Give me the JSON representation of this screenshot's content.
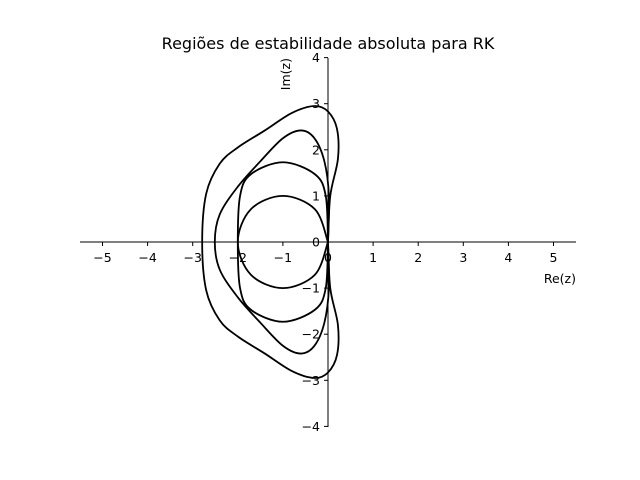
{
  "chart_data": {
    "type": "line",
    "title": "Regiões de estabilidade absoluta para RK",
    "xlabel": "Re(z)",
    "ylabel": "Im(z)",
    "xlim": [
      -5.5,
      5.5
    ],
    "ylim": [
      -4,
      4
    ],
    "grid": false,
    "legend": "none",
    "spines": "centered-at-origin",
    "xticks": [
      -5,
      -4,
      -3,
      -2,
      -1,
      0,
      1,
      2,
      3,
      4,
      5
    ],
    "yticks": [
      -4,
      -3,
      -2,
      -1,
      0,
      1,
      2,
      3,
      4
    ],
    "xtick_labels": [
      "−5",
      "−4",
      "−3",
      "−2",
      "−1",
      "0",
      "1",
      "2",
      "3",
      "4",
      "5"
    ],
    "ytick_labels": [
      "−4",
      "−3",
      "−2",
      "−1",
      "0",
      "1",
      "2",
      "3",
      "4"
    ],
    "series": [
      {
        "stages": 1,
        "points": [
          [
            0,
            0
          ],
          [
            -0.29,
            0.71
          ],
          [
            -1,
            1
          ],
          [
            -1.71,
            0.71
          ],
          [
            -2,
            0
          ],
          [
            -1.71,
            -0.71
          ],
          [
            -1,
            -1
          ],
          [
            -0.29,
            -0.71
          ],
          [
            0,
            0
          ]
        ]
      },
      {
        "stages": 2,
        "points": [
          [
            0,
            0
          ],
          [
            -0.05,
            1.0
          ],
          [
            -0.29,
            1.47
          ],
          [
            -1,
            1.73
          ],
          [
            -1.71,
            1.47
          ],
          [
            -1.95,
            1.0
          ],
          [
            -2,
            0
          ],
          [
            -1.95,
            -1.0
          ],
          [
            -1.71,
            -1.47
          ],
          [
            -1,
            -1.73
          ],
          [
            -0.29,
            -1.47
          ],
          [
            -0.05,
            -1.0
          ],
          [
            0,
            0
          ]
        ]
      },
      {
        "stages": 3,
        "points": [
          [
            0,
            0
          ],
          [
            0.02,
            1.0
          ],
          [
            -0.08,
            1.75
          ],
          [
            -0.3,
            2.25
          ],
          [
            -0.6,
            2.42
          ],
          [
            -1.0,
            2.25
          ],
          [
            -1.5,
            1.75
          ],
          [
            -2.0,
            1.2
          ],
          [
            -2.4,
            0.6
          ],
          [
            -2.51,
            0
          ],
          [
            -2.4,
            -0.6
          ],
          [
            -2.0,
            -1.2
          ],
          [
            -1.5,
            -1.75
          ],
          [
            -1.0,
            -2.25
          ],
          [
            -0.6,
            -2.42
          ],
          [
            -0.3,
            -2.25
          ],
          [
            -0.08,
            -1.75
          ],
          [
            0.02,
            -1.0
          ],
          [
            0,
            0
          ]
        ]
      },
      {
        "stages": 4,
        "points": [
          [
            0,
            0
          ],
          [
            0.05,
            1.0
          ],
          [
            0.22,
            1.8
          ],
          [
            0.2,
            2.45
          ],
          [
            0,
            2.83
          ],
          [
            -0.3,
            2.95
          ],
          [
            -0.8,
            2.8
          ],
          [
            -1.4,
            2.42
          ],
          [
            -2.0,
            2.05
          ],
          [
            -2.4,
            1.7
          ],
          [
            -2.7,
            1.05
          ],
          [
            -2.79,
            0
          ],
          [
            -2.7,
            -1.05
          ],
          [
            -2.4,
            -1.7
          ],
          [
            -2.0,
            -2.05
          ],
          [
            -1.4,
            -2.42
          ],
          [
            -0.8,
            -2.8
          ],
          [
            -0.3,
            -2.95
          ],
          [
            0,
            -2.83
          ],
          [
            0.2,
            -2.45
          ],
          [
            0.22,
            -1.8
          ],
          [
            0.05,
            -1.0
          ],
          [
            0,
            0
          ]
        ]
      }
    ]
  }
}
